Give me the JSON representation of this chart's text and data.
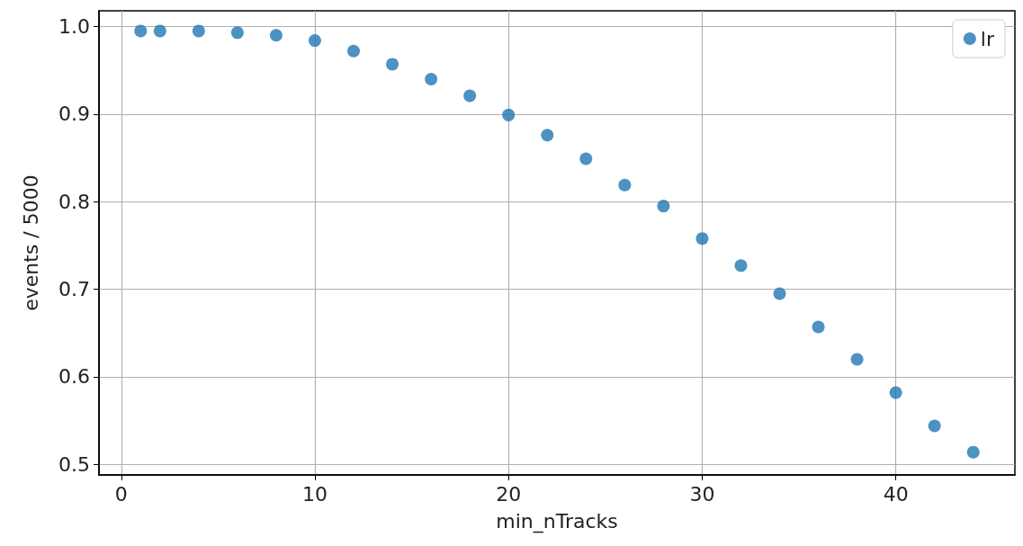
{
  "chart_data": {
    "type": "scatter",
    "xlabel": "min_nTracks",
    "ylabel": "events / 5000",
    "x": [
      1,
      2,
      4,
      6,
      8,
      10,
      12,
      14,
      16,
      18,
      20,
      22,
      24,
      26,
      28,
      30,
      32,
      34,
      36,
      38,
      40,
      42,
      44
    ],
    "series": [
      {
        "name": "lr",
        "color": "#1f77b4",
        "values": [
          0.995,
          0.995,
          0.995,
          0.993,
          0.99,
          0.984,
          0.972,
          0.957,
          0.94,
          0.921,
          0.899,
          0.876,
          0.849,
          0.819,
          0.795,
          0.758,
          0.727,
          0.695,
          0.657,
          0.62,
          0.582,
          0.544,
          0.514
        ]
      }
    ],
    "xlim": [
      -1.15,
      46.15
    ],
    "xticks": [
      0,
      10,
      20,
      30,
      40
    ],
    "ylim": [
      0.488,
      1.018
    ],
    "yticks": [
      0.5,
      0.6,
      0.7,
      0.8,
      0.9,
      {
        "value": 1,
        "label": "1.0"
      }
    ],
    "grid": true,
    "legend": "top right",
    "marker": "circle"
  }
}
